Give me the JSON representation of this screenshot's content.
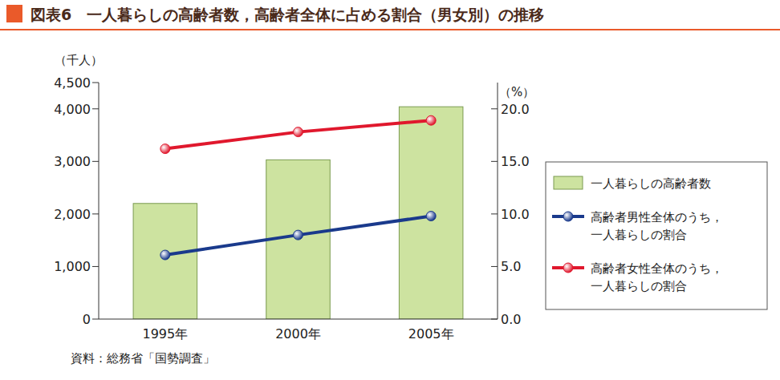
{
  "chart_data": {
    "type": "bar",
    "title": "図表6　一人暮らしの高齢者数，高齢者全体に占める割合（男女別）の推移",
    "categories": [
      "1995年",
      "2000年",
      "2005年"
    ],
    "series": [
      {
        "name": "一人暮らしの高齢者数",
        "type": "bar",
        "color": "#cde3a0",
        "values": [
          2200,
          3030,
          4040
        ]
      },
      {
        "name": "高齢者男性全体のうち，一人暮らしの割合",
        "type": "line",
        "color": "#1a3a8c",
        "marker": "circle",
        "axis": "y2",
        "values": [
          6.1,
          8.0,
          9.8
        ]
      },
      {
        "name": "高齢者女性全体のうち，一人暮らしの割合",
        "type": "line",
        "color": "#e0182d",
        "marker": "circle",
        "axis": "y2",
        "values": [
          16.2,
          17.8,
          18.9
        ]
      }
    ],
    "ylim": [
      0,
      4500
    ],
    "yticks": [
      0,
      {
        "value": 1000,
        "label": "1,000"
      },
      {
        "value": 2000,
        "label": "2,000"
      },
      {
        "value": 3000,
        "label": "3,000"
      },
      {
        "value": 4000,
        "label": "4,000"
      },
      {
        "value": 4500,
        "label": "4,500"
      }
    ],
    "y_label": "（千人）",
    "y2lim": [
      0,
      22.5
    ],
    "y2ticks": [
      {
        "value": 0,
        "label": "0.0"
      },
      {
        "value": 5,
        "label": "5.0"
      },
      {
        "value": 10,
        "label": "10.0"
      },
      {
        "value": 15,
        "label": "15.0"
      },
      {
        "value": 20,
        "label": "20.0"
      }
    ],
    "y2_label": "（%）",
    "legend": "right",
    "grid": false,
    "annotations": [
      "資料：総務省「国勢調査」"
    ]
  }
}
